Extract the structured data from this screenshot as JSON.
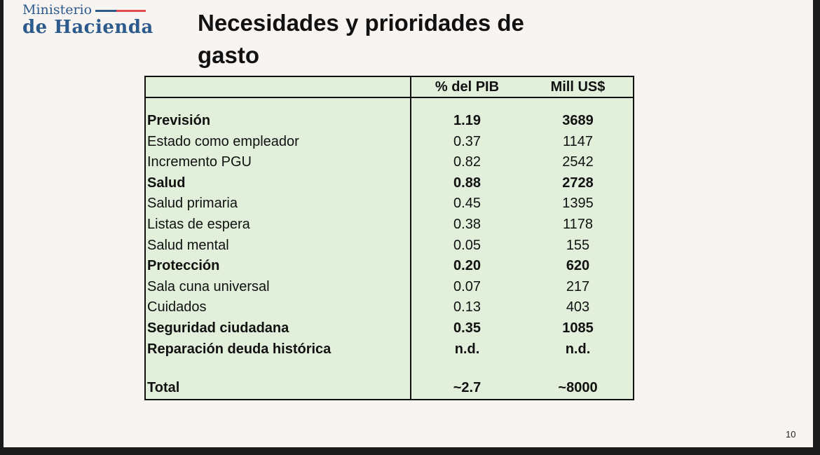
{
  "logo": {
    "line1": "Ministerio",
    "line2": "de Hacienda"
  },
  "title": "Necesidades y prioridades de gasto",
  "table": {
    "headers": [
      "",
      "% del PIB",
      "Mill US$"
    ],
    "rows": [
      {
        "label": "Previsión",
        "pib": "1.19",
        "mill": "3689",
        "bold": true
      },
      {
        "label": "Estado como empleador",
        "pib": "0.37",
        "mill": "1147",
        "bold": false
      },
      {
        "label": "Incremento PGU",
        "pib": "0.82",
        "mill": "2542",
        "bold": false
      },
      {
        "label": "Salud",
        "pib": "0.88",
        "mill": "2728",
        "bold": true
      },
      {
        "label": "Salud primaria",
        "pib": "0.45",
        "mill": "1395",
        "bold": false
      },
      {
        "label": "Listas de espera",
        "pib": "0.38",
        "mill": "1178",
        "bold": false
      },
      {
        "label": "Salud mental",
        "pib": "0.05",
        "mill": "155",
        "bold": false
      },
      {
        "label": "Protección",
        "pib": "0.20",
        "mill": "620",
        "bold": true
      },
      {
        "label": "Sala cuna universal",
        "pib": "0.07",
        "mill": "217",
        "bold": false
      },
      {
        "label": "Cuidados",
        "pib": "0.13",
        "mill": "403",
        "bold": false
      },
      {
        "label": "Seguridad ciudadana",
        "pib": "0.35",
        "mill": "1085",
        "bold": true
      },
      {
        "label": "Reparación deuda histórica",
        "pib": "n.d.",
        "mill": "n.d.",
        "bold": true
      }
    ],
    "total": {
      "label": "Total",
      "pib": "~2.7",
      "mill": "~8000"
    }
  },
  "page_number": "10"
}
